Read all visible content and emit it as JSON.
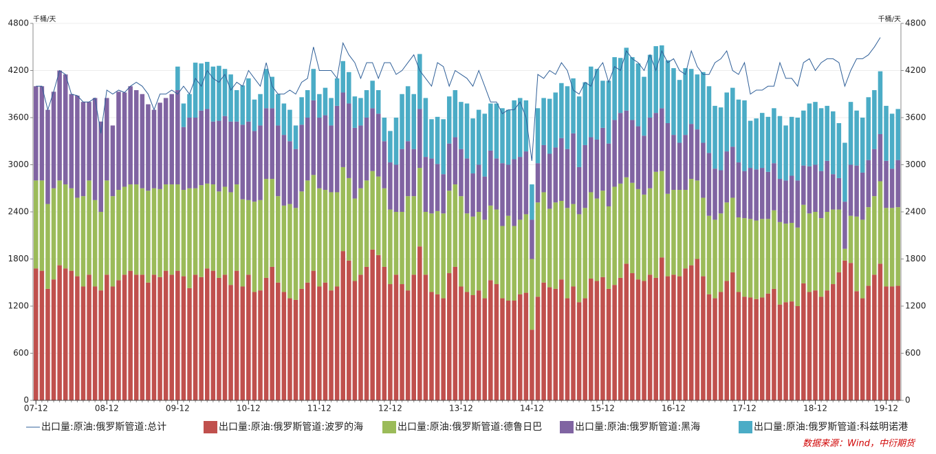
{
  "chart_data": {
    "type": "bar",
    "y_label": "千桶/天",
    "y2_label": "千桶/天",
    "source": "数据来源：Wind，中衍期货",
    "ylim": [
      0,
      4800
    ],
    "yticks": [
      0,
      600,
      1200,
      1800,
      2400,
      3000,
      3600,
      4200,
      4800
    ],
    "y2lim": [
      0,
      4800
    ],
    "y2ticks": [
      0,
      600,
      1200,
      1800,
      2400,
      3000,
      3600,
      4200,
      4800
    ],
    "grid": true,
    "legend": "bottom",
    "categories": [
      "07-12",
      null,
      null,
      null,
      null,
      null,
      null,
      null,
      null,
      null,
      null,
      null,
      "08-12",
      null,
      null,
      null,
      null,
      null,
      null,
      null,
      null,
      null,
      null,
      null,
      "09-12",
      null,
      null,
      null,
      null,
      null,
      null,
      null,
      null,
      null,
      null,
      null,
      "10-12",
      null,
      null,
      null,
      null,
      null,
      null,
      null,
      null,
      null,
      null,
      null,
      "11-12",
      null,
      null,
      null,
      null,
      null,
      null,
      null,
      null,
      null,
      null,
      null,
      "12-12",
      null,
      null,
      null,
      null,
      null,
      null,
      null,
      null,
      null,
      null,
      null,
      "13-12",
      null,
      null,
      null,
      null,
      null,
      null,
      null,
      null,
      null,
      null,
      null,
      "14-12",
      null,
      null,
      null,
      null,
      null,
      null,
      null,
      null,
      null,
      null,
      null,
      "15-12",
      null,
      null,
      null,
      null,
      null,
      null,
      null,
      null,
      null,
      null,
      null,
      "16-12",
      null,
      null,
      null,
      null,
      null,
      null,
      null,
      null,
      null,
      null,
      null,
      "17-12",
      null,
      null,
      null,
      null,
      null,
      null,
      null,
      null,
      null,
      null,
      null,
      "18-12",
      null,
      null,
      null,
      null,
      null,
      null,
      null,
      null,
      null,
      null,
      null,
      "19-12",
      null,
      null
    ],
    "series": [
      {
        "name": "出口量:原油:俄罗斯管道:总计",
        "type": "line",
        "axis": "y2",
        "color": "#2f5f98",
        "values": [
          4000,
          4000,
          3700,
          3930,
          4200,
          4150,
          3900,
          3880,
          3800,
          3800,
          3850,
          3400,
          3950,
          3900,
          3950,
          3920,
          4000,
          4050,
          4000,
          3900,
          3700,
          3900,
          3900,
          3950,
          3900,
          4000,
          3900,
          4100,
          4000,
          4200,
          4100,
          4050,
          4150,
          3950,
          4050,
          4000,
          4200,
          4100,
          4000,
          4300,
          4000,
          3900,
          3900,
          3950,
          3900,
          4050,
          4100,
          4500,
          4200,
          4200,
          4200,
          4100,
          4550,
          4400,
          4300,
          4100,
          4300,
          4300,
          4100,
          4300,
          4300,
          4150,
          4200,
          4300,
          4400,
          4200,
          4100,
          4000,
          4300,
          4250,
          4000,
          4200,
          4150,
          4100,
          4000,
          4200,
          4000,
          3800,
          3800,
          3650,
          3700,
          3700,
          3800,
          3600,
          3050,
          4150,
          4100,
          4200,
          4150,
          4300,
          4200,
          3950,
          3900,
          4050,
          4000,
          4200,
          4300,
          4050,
          4250,
          4200,
          4450,
          4350,
          4300,
          4200,
          4400,
          4200,
          4450,
          4300,
          4350,
          4200,
          4150,
          4450,
          4250,
          4150,
          4150,
          4300,
          4350,
          4450,
          4200,
          4150,
          4300,
          3900,
          3950,
          3950,
          4000,
          4000,
          4300,
          4100,
          4100,
          4000,
          4300,
          4350,
          4200,
          4300,
          4350,
          4350,
          4300,
          4000,
          4200,
          4350,
          4350,
          4400,
          4500,
          4620,
          null,
          null,
          null
        ]
      },
      {
        "name": "出口量:原油:俄罗斯管道:波罗的海",
        "color": "#c0504d",
        "values": [
          1680,
          1650,
          1420,
          1540,
          1720,
          1680,
          1650,
          1580,
          1450,
          1600,
          1450,
          1400,
          1600,
          1450,
          1530,
          1600,
          1650,
          1600,
          1600,
          1500,
          1600,
          1570,
          1650,
          1600,
          1650,
          1580,
          1430,
          1600,
          1570,
          1680,
          1650,
          1560,
          1600,
          1470,
          1650,
          1450,
          1600,
          1380,
          1400,
          1560,
          1700,
          1500,
          1380,
          1300,
          1280,
          1420,
          1500,
          1650,
          1450,
          1500,
          1400,
          1450,
          1900,
          1780,
          1520,
          1600,
          1700,
          1920,
          1850,
          1700,
          1480,
          1600,
          1480,
          1400,
          1600,
          1960,
          1600,
          1380,
          1350,
          1300,
          1620,
          1700,
          1450,
          1380,
          1340,
          1400,
          1300,
          1530,
          1480,
          1300,
          1270,
          1270,
          1350,
          1370,
          900,
          1320,
          1500,
          1440,
          1420,
          1540,
          1300,
          1450,
          1250,
          1300,
          1550,
          1520,
          1570,
          1420,
          1470,
          1560,
          1740,
          1620,
          1540,
          1520,
          1600,
          1560,
          1820,
          1580,
          1600,
          1580,
          1680,
          1720,
          1800,
          1580,
          1350,
          1300,
          1380,
          1520,
          1630,
          1380,
          1320,
          1310,
          1290,
          1310,
          1360,
          1420,
          1220,
          1250,
          1260,
          1200,
          1490,
          1380,
          1400,
          1320,
          1400,
          1480,
          1630,
          1780,
          1750,
          1390,
          1300,
          1460,
          1600,
          1740,
          1450,
          1450,
          1460
        ]
      },
      {
        "name": "出口量:原油:俄罗斯管道:德鲁日巴",
        "color": "#9bbb59",
        "values": [
          1120,
          1150,
          1080,
          1160,
          1080,
          1070,
          1050,
          1000,
          1150,
          1200,
          1100,
          1000,
          1200,
          1150,
          1150,
          1120,
          1100,
          1150,
          1100,
          1170,
          1100,
          1120,
          1100,
          1150,
          1100,
          1100,
          1270,
          1100,
          1170,
          1080,
          1100,
          1100,
          1120,
          1180,
          1100,
          1110,
          950,
          1150,
          1150,
          1260,
          1120,
          1100,
          1100,
          1200,
          1170,
          1240,
          1300,
          1220,
          1250,
          1180,
          1250,
          1200,
          1070,
          1050,
          1050,
          1100,
          1100,
          1000,
          1000,
          1000,
          950,
          800,
          920,
          1200,
          1000,
          1000,
          800,
          1000,
          1060,
          1080,
          1050,
          1050,
          1150,
          1000,
          1000,
          1000,
          1000,
          950,
          950,
          920,
          1080,
          950,
          950,
          1000,
          900,
          1200,
          1150,
          1000,
          1100,
          1000,
          1150,
          1050,
          1120,
          1150,
          1100,
          1050,
          1100,
          1050,
          1250,
          1200,
          1100,
          1150,
          1150,
          1100,
          1100,
          1350,
          1100,
          1050,
          1080,
          1100,
          1000,
          1100,
          1000,
          1000,
          1000,
          1000,
          1000,
          1000,
          950,
          950,
          1000,
          1000,
          1000,
          1000,
          950,
          1000,
          1050,
          1000,
          1000,
          1000,
          1000,
          1000,
          1000,
          1000,
          1000,
          950,
          800,
          150,
          600,
          950,
          1000,
          1000,
          1000,
          1050,
          1000,
          1000,
          1000
        ]
      },
      {
        "name": "出口量:原油:俄罗斯管道:黑海",
        "color": "#8064a2",
        "values": [
          1200,
          1200,
          1200,
          1230,
          1400,
          1400,
          1200,
          1300,
          1200,
          1000,
          1300,
          1150,
          1050,
          900,
          1250,
          1200,
          1250,
          1200,
          1200,
          1100,
          1000,
          1100,
          1100,
          1150,
          1200,
          800,
          900,
          900,
          950,
          950,
          800,
          900,
          900,
          900,
          800,
          950,
          1000,
          900,
          950,
          900,
          900,
          900,
          900,
          800,
          750,
          850,
          800,
          950,
          900,
          950,
          850,
          1100,
          950,
          950,
          900,
          800,
          800,
          800,
          800,
          600,
          600,
          600,
          800,
          700,
          600,
          750,
          700,
          700,
          600,
          500,
          600,
          600,
          600,
          700,
          550,
          600,
          550,
          700,
          650,
          800,
          650,
          850,
          800,
          800,
          500,
          500,
          600,
          700,
          700,
          800,
          750,
          900,
          600,
          800,
          700,
          750,
          800,
          800,
          850,
          900,
          850,
          800,
          800,
          750,
          900,
          750,
          800,
          900,
          700,
          600,
          700,
          700,
          650,
          700,
          800,
          650,
          550,
          650,
          650,
          700,
          600,
          650,
          650,
          650,
          600,
          600,
          550,
          550,
          600,
          600,
          500,
          600,
          600,
          600,
          650,
          450,
          400,
          600,
          650,
          650,
          600,
          600,
          600,
          600,
          600,
          500,
          600
        ]
      },
      {
        "name": "出口量:原油:俄罗斯管道:科兹明诺港",
        "color": "#4bacc6",
        "values": [
          null,
          null,
          null,
          null,
          null,
          null,
          null,
          null,
          null,
          null,
          null,
          null,
          null,
          null,
          null,
          null,
          null,
          null,
          null,
          null,
          null,
          null,
          null,
          null,
          300,
          300,
          300,
          700,
          600,
          600,
          700,
          700,
          600,
          600,
          400,
          500,
          550,
          400,
          400,
          500,
          400,
          400,
          400,
          400,
          300,
          350,
          350,
          400,
          300,
          350,
          350,
          350,
          400,
          400,
          400,
          350,
          350,
          350,
          300,
          300,
          400,
          600,
          700,
          700,
          700,
          700,
          750,
          500,
          600,
          700,
          600,
          600,
          600,
          700,
          700,
          700,
          800,
          600,
          700,
          700,
          700,
          750,
          750,
          650,
          450,
          700,
          600,
          700,
          700,
          700,
          800,
          700,
          900,
          800,
          900,
          900,
          600,
          800,
          800,
          700,
          800,
          800,
          800,
          750,
          800,
          850,
          800,
          800,
          850,
          800,
          850,
          700,
          700,
          900,
          850,
          800,
          800,
          750,
          750,
          800,
          900,
          600,
          650,
          700,
          700,
          700,
          800,
          700,
          750,
          800,
          700,
          800,
          800,
          800,
          700,
          800,
          700,
          750,
          800,
          700,
          700,
          800,
          750,
          800,
          700,
          700,
          650
        ]
      }
    ]
  }
}
